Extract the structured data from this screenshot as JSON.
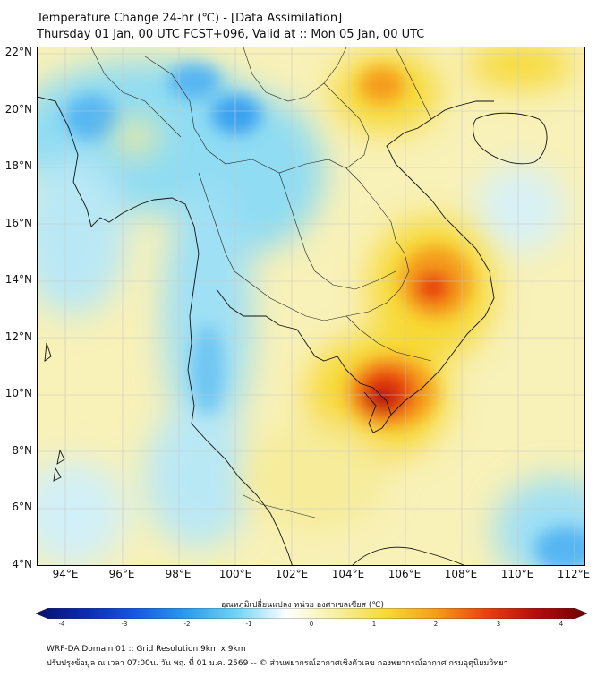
{
  "title_line1": "Temperature Change 24-hr (℃) - [Data Assimilation]",
  "title_line2": "Thursday 01 Jan, 00 UTC FCST+096, Valid at :: Mon 05 Jan, 00 UTC",
  "lat_labels": [
    "22°N",
    "20°N",
    "18°N",
    "16°N",
    "14°N",
    "12°N",
    "10°N",
    "8°N",
    "6°N",
    "4°N"
  ],
  "lon_labels": [
    "94°E",
    "96°E",
    "98°E",
    "100°E",
    "102°E",
    "104°E",
    "106°E",
    "108°E",
    "110°E",
    "112°E"
  ],
  "colorbar": {
    "label": "อุณหภูมิเปลี่ยนแปลง หน่วย องศาเซลเซียส (℃)",
    "ticks": [
      "-4",
      "-3",
      "-2",
      "-1",
      "0",
      "1",
      "2",
      "3",
      "4"
    ],
    "colors": [
      "#08106e",
      "#0c2bb0",
      "#1559e0",
      "#2a9bf0",
      "#6fd3f5",
      "#ffffff",
      "#f5f0a0",
      "#f7d935",
      "#f59c1a",
      "#e8400e",
      "#b30c0c",
      "#6e0000"
    ]
  },
  "footer_line1": "WRF-DA Domain 01 :: Grid Resolution 9km x 9km",
  "footer_line2": "ปรับปรุงข้อมูล ณ เวลา 07:00น. วัน พฤ. ที่ 01 ม.ค. 2569 -- © ส่วนพยากรณ์อากาศเชิงตัวเลข กองพยากรณ์อากาศ กรมอุตุนิยมวิทยา"
}
